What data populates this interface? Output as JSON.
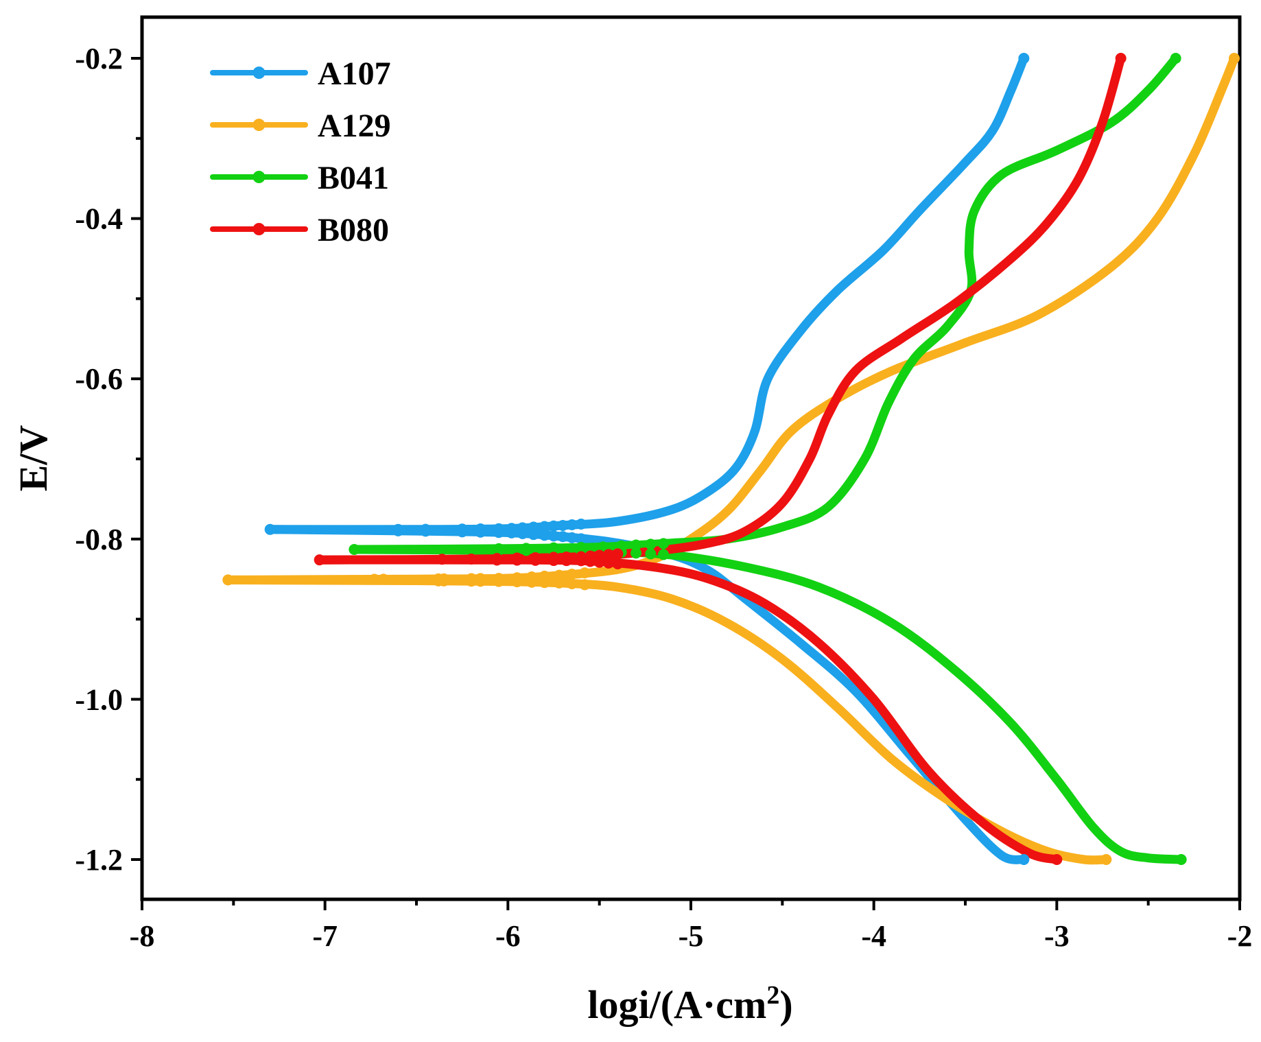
{
  "chart_data": {
    "type": "line",
    "title": "",
    "xlabel": "logi/(A·cm",
    "xlabel_sup": "2",
    "xlabel_close": ")",
    "ylabel": "E/V",
    "xlim": [
      -8,
      -2
    ],
    "ylim": [
      -1.25,
      -0.14
    ],
    "xticks": [
      -8,
      -7,
      -6,
      -5,
      -4,
      -3,
      -2
    ],
    "xtick_labels": [
      "-8",
      "-7",
      "-6",
      "-5",
      "-4",
      "-3",
      "-2"
    ],
    "yticks": [
      -1.2,
      -1.0,
      -0.8,
      -0.6,
      -0.4,
      -0.2
    ],
    "ytick_labels": [
      "-1.2",
      "-1.0",
      "-0.8",
      "-0.6",
      "-0.4",
      "-0.2"
    ],
    "legend_position": "top-left",
    "grid": false,
    "series": [
      {
        "name": "A107",
        "color": "#1ea0ea",
        "cathodic": [
          [
            -3.18,
            -1.2
          ],
          [
            -3.3,
            -1.195
          ],
          [
            -3.5,
            -1.15
          ],
          [
            -3.8,
            -1.07
          ],
          [
            -4.1,
            -0.99
          ],
          [
            -4.4,
            -0.93
          ],
          [
            -4.7,
            -0.875
          ],
          [
            -4.9,
            -0.84
          ],
          [
            -5.1,
            -0.82
          ],
          [
            -5.4,
            -0.805
          ],
          [
            -5.7,
            -0.797
          ],
          [
            -6.0,
            -0.792
          ],
          [
            -6.5,
            -0.79
          ],
          [
            -7.3,
            -0.788
          ]
        ],
        "anodic": [
          [
            -7.3,
            -0.788
          ],
          [
            -6.5,
            -0.788
          ],
          [
            -6.0,
            -0.787
          ],
          [
            -5.7,
            -0.783
          ],
          [
            -5.4,
            -0.778
          ],
          [
            -5.1,
            -0.763
          ],
          [
            -4.9,
            -0.74
          ],
          [
            -4.75,
            -0.71
          ],
          [
            -4.65,
            -0.665
          ],
          [
            -4.58,
            -0.6
          ],
          [
            -4.4,
            -0.54
          ],
          [
            -4.2,
            -0.49
          ],
          [
            -3.95,
            -0.44
          ],
          [
            -3.75,
            -0.39
          ],
          [
            -3.5,
            -0.33
          ],
          [
            -3.35,
            -0.29
          ],
          [
            -3.25,
            -0.24
          ],
          [
            -3.18,
            -0.2
          ]
        ],
        "markers": [
          -7.3,
          -6.6,
          -6.45,
          -6.25,
          -6.15,
          -6.05,
          -5.98,
          -5.92,
          -5.86,
          -5.8,
          -5.75,
          -5.7,
          -5.65,
          -5.6
        ]
      },
      {
        "name": "A129",
        "color": "#f9b01e",
        "cathodic": [
          [
            -2.73,
            -1.2
          ],
          [
            -2.85,
            -1.2
          ],
          [
            -3.05,
            -1.19
          ],
          [
            -3.3,
            -1.165
          ],
          [
            -3.6,
            -1.125
          ],
          [
            -3.9,
            -1.075
          ],
          [
            -4.2,
            -1.01
          ],
          [
            -4.5,
            -0.95
          ],
          [
            -4.8,
            -0.905
          ],
          [
            -5.1,
            -0.875
          ],
          [
            -5.4,
            -0.86
          ],
          [
            -5.7,
            -0.855
          ],
          [
            -6.0,
            -0.853
          ],
          [
            -6.5,
            -0.852
          ],
          [
            -7.53,
            -0.851
          ]
        ],
        "anodic": [
          [
            -7.53,
            -0.851
          ],
          [
            -6.5,
            -0.85
          ],
          [
            -6.0,
            -0.849
          ],
          [
            -5.7,
            -0.845
          ],
          [
            -5.4,
            -0.838
          ],
          [
            -5.2,
            -0.825
          ],
          [
            -5.0,
            -0.8
          ],
          [
            -4.8,
            -0.765
          ],
          [
            -4.62,
            -0.715
          ],
          [
            -4.45,
            -0.665
          ],
          [
            -4.2,
            -0.625
          ],
          [
            -3.9,
            -0.59
          ],
          [
            -3.5,
            -0.555
          ],
          [
            -3.1,
            -0.52
          ],
          [
            -2.7,
            -0.46
          ],
          [
            -2.45,
            -0.4
          ],
          [
            -2.25,
            -0.32
          ],
          [
            -2.1,
            -0.24
          ],
          [
            -2.03,
            -0.2
          ]
        ],
        "markers": [
          -7.53,
          -6.73,
          -6.68,
          -6.38,
          -6.35,
          -6.2,
          -6.15,
          -6.05,
          -5.95,
          -5.87,
          -5.8,
          -5.72,
          -5.65,
          -5.58
        ]
      },
      {
        "name": "B041",
        "color": "#12d112",
        "cathodic": [
          [
            -2.32,
            -1.2
          ],
          [
            -2.5,
            -1.198
          ],
          [
            -2.65,
            -1.19
          ],
          [
            -2.8,
            -1.16
          ],
          [
            -3.0,
            -1.1
          ],
          [
            -3.25,
            -1.03
          ],
          [
            -3.55,
            -0.965
          ],
          [
            -3.9,
            -0.905
          ],
          [
            -4.3,
            -0.86
          ],
          [
            -4.7,
            -0.835
          ],
          [
            -5.1,
            -0.82
          ],
          [
            -5.5,
            -0.815
          ],
          [
            -6.0,
            -0.814
          ],
          [
            -6.84,
            -0.813
          ]
        ],
        "anodic": [
          [
            -6.84,
            -0.813
          ],
          [
            -6.0,
            -0.812
          ],
          [
            -5.5,
            -0.81
          ],
          [
            -5.1,
            -0.805
          ],
          [
            -4.8,
            -0.8
          ],
          [
            -4.5,
            -0.785
          ],
          [
            -4.25,
            -0.76
          ],
          [
            -4.05,
            -0.7
          ],
          [
            -3.92,
            -0.63
          ],
          [
            -3.78,
            -0.575
          ],
          [
            -3.6,
            -0.535
          ],
          [
            -3.47,
            -0.49
          ],
          [
            -3.48,
            -0.44
          ],
          [
            -3.45,
            -0.39
          ],
          [
            -3.3,
            -0.345
          ],
          [
            -3.0,
            -0.315
          ],
          [
            -2.7,
            -0.28
          ],
          [
            -2.5,
            -0.24
          ],
          [
            -2.35,
            -0.2
          ]
        ],
        "markers": [
          -6.84,
          -6.05,
          -5.9,
          -5.75,
          -5.6,
          -5.48,
          -5.38,
          -5.3,
          -5.22,
          -5.15
        ]
      },
      {
        "name": "B080",
        "color": "#ee1111",
        "cathodic": [
          [
            -3.0,
            -1.2
          ],
          [
            -3.15,
            -1.192
          ],
          [
            -3.4,
            -1.155
          ],
          [
            -3.7,
            -1.09
          ],
          [
            -4.0,
            -1.0
          ],
          [
            -4.3,
            -0.93
          ],
          [
            -4.6,
            -0.88
          ],
          [
            -4.9,
            -0.85
          ],
          [
            -5.2,
            -0.835
          ],
          [
            -5.6,
            -0.827
          ],
          [
            -6.2,
            -0.826
          ],
          [
            -7.03,
            -0.826
          ]
        ],
        "anodic": [
          [
            -7.03,
            -0.826
          ],
          [
            -6.2,
            -0.825
          ],
          [
            -5.6,
            -0.822
          ],
          [
            -5.2,
            -0.815
          ],
          [
            -4.9,
            -0.805
          ],
          [
            -4.7,
            -0.79
          ],
          [
            -4.5,
            -0.755
          ],
          [
            -4.35,
            -0.7
          ],
          [
            -4.25,
            -0.645
          ],
          [
            -4.1,
            -0.59
          ],
          [
            -3.85,
            -0.55
          ],
          [
            -3.55,
            -0.505
          ],
          [
            -3.25,
            -0.45
          ],
          [
            -3.05,
            -0.405
          ],
          [
            -2.88,
            -0.35
          ],
          [
            -2.75,
            -0.28
          ],
          [
            -2.65,
            -0.2
          ]
        ],
        "markers": [
          -7.03,
          -6.36,
          -6.2,
          -6.06,
          -5.95,
          -5.85,
          -5.75,
          -5.68,
          -5.6,
          -5.55,
          -5.5,
          -5.45,
          -5.4
        ]
      }
    ]
  }
}
